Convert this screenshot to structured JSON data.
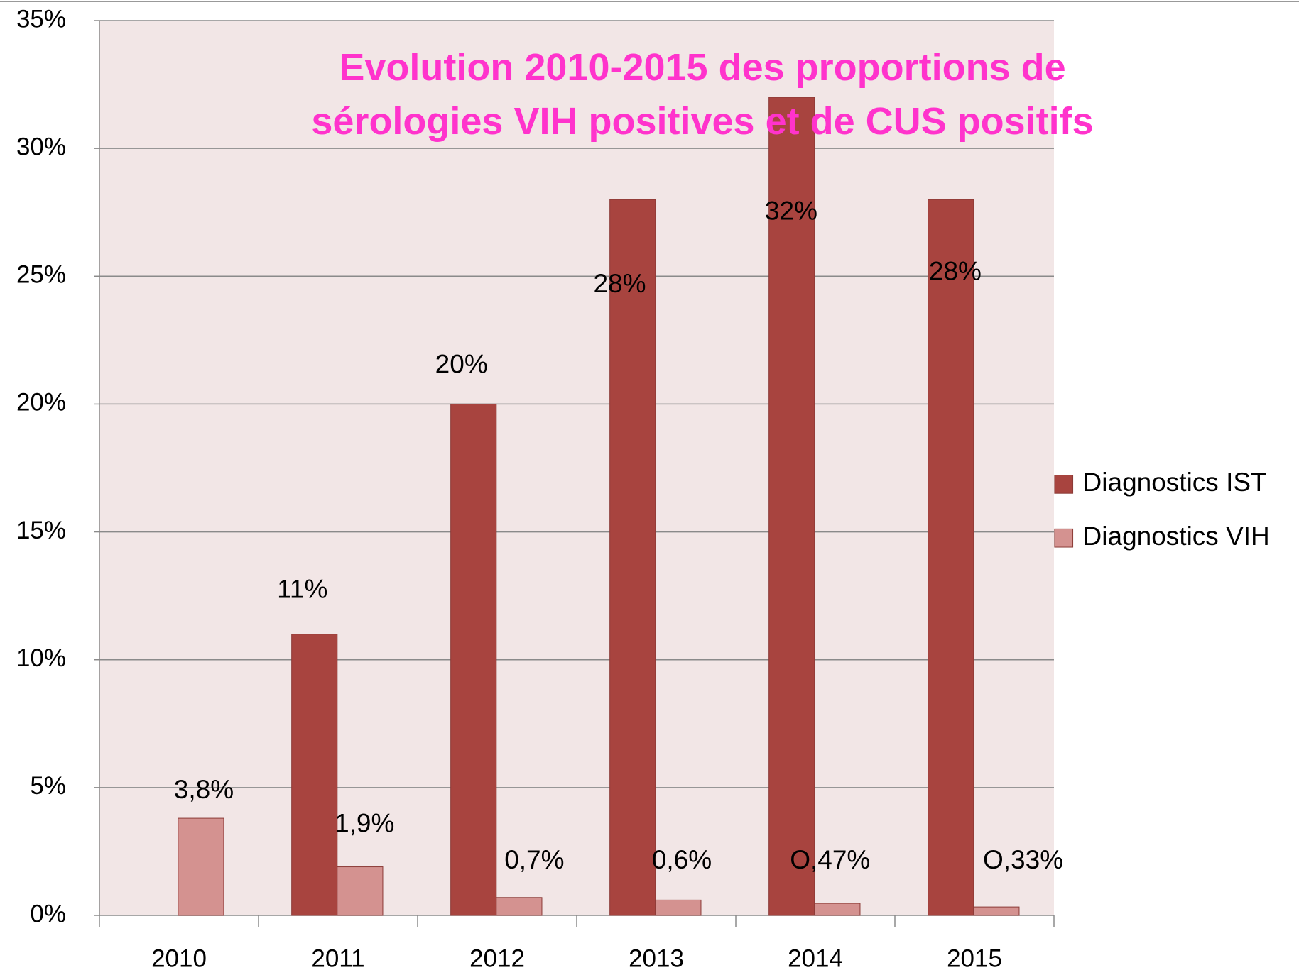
{
  "chart_data": {
    "type": "bar",
    "title": "Evolution 2010-2015 des proportions de sérologies VIH positives et de CUS positifs",
    "categories": [
      "2010",
      "2011",
      "2012",
      "2013",
      "2014",
      "2015"
    ],
    "series": [
      {
        "name": "Diagnostics IST",
        "color": "#a8443f",
        "values": [
          null,
          11,
          20,
          28,
          32,
          28
        ],
        "value_labels": [
          null,
          "11%",
          "20%",
          "28%",
          "32%",
          "28%"
        ]
      },
      {
        "name": "Diagnostics VIH",
        "color": "#d49290",
        "values": [
          3.8,
          1.9,
          0.7,
          0.6,
          0.47,
          0.33
        ],
        "value_labels": [
          "3,8%",
          "1,9%",
          "0,7%",
          "0,6%",
          "O,47%",
          "O,33%"
        ]
      }
    ],
    "ylim": [
      0,
      35
    ],
    "yticks": [
      {
        "value": 0,
        "label": "0%"
      },
      {
        "value": 5,
        "label": "5%"
      },
      {
        "value": 10,
        "label": "10%"
      },
      {
        "value": 15,
        "label": "15%"
      },
      {
        "value": 20,
        "label": "20%"
      },
      {
        "value": 25,
        "label": "25%"
      },
      {
        "value": 30,
        "label": "30%"
      },
      {
        "value": 35,
        "label": "35%"
      }
    ],
    "grid": true,
    "legend": "right"
  }
}
